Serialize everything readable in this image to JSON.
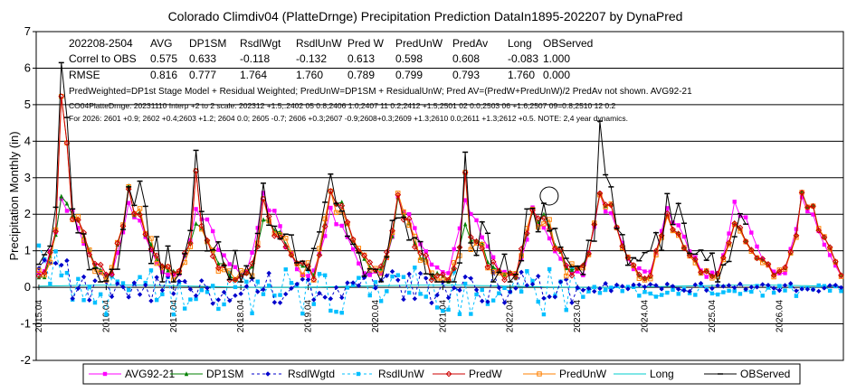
{
  "chart_data": {
    "type": "line",
    "title": "Colorado Climdiv04 (PlatteDrnge) Precipitation Prediction DataIn1895-202207 by DynaPred",
    "ylabel": "Precipitation Monthly (in)",
    "ylim": [
      -2,
      7
    ],
    "yticks": [
      "7",
      "6",
      "5",
      "4",
      "3",
      "2",
      "1",
      "0",
      "-1",
      "-2"
    ],
    "xrange": [
      2015.0,
      2026.99
    ],
    "xticks": [
      {
        "label": "2015.04",
        "value": 2015.04
      },
      {
        "label": "2016.04",
        "value": 2016.04
      },
      {
        "label": "2017.04",
        "value": 2017.04
      },
      {
        "label": "2018.04",
        "value": 2018.04
      },
      {
        "label": "2019.04",
        "value": 2019.04
      },
      {
        "label": "2020.04",
        "value": 2020.04
      },
      {
        "label": "2021.04",
        "value": 2021.04
      },
      {
        "label": "2022.04",
        "value": 2022.04
      },
      {
        "label": "2023.04",
        "value": 2023.04
      },
      {
        "label": "2024.04",
        "value": 2024.04
      },
      {
        "label": "2025.04",
        "value": 2025.04
      },
      {
        "label": "2026.04",
        "value": 2026.04
      }
    ],
    "stats_table": {
      "header": [
        "202208-2504",
        "AVG",
        "DP1SM",
        "RsdlWgt",
        "RsdlUnW",
        "Pred W",
        "PredUnW",
        "PredAv",
        "Long",
        "OBServed"
      ],
      "rows": [
        [
          "Correl to OBS",
          "0.575",
          "0.633",
          "-0.118",
          "-0.132",
          "0.613",
          "0.598",
          "0.608",
          "-0.083",
          "1.000"
        ],
        [
          "RMSE",
          "0.816",
          "0.777",
          "1.764",
          "1.760",
          "0.789",
          "0.799",
          "0.793",
          "1.760",
          "0.000"
        ]
      ]
    },
    "notes": [
      "PredWeighted=DP1st Stage Model + Residual Weighted; PredUnW=DP1SM + ResidualUnW; Pred AV=(PredW+PredUnW)/2 PredAv not shown. AVG92-21",
      "CO04PlatteDrnge. 20231110 Interp +2 to  2 scale: 202312 +1.5;.2402 05  0.8;2406  1.0;2407 11  0.2;2412 +1.5;2501 02 0.0;2503 06 +1.6;2507 09=0.8;2510 12  0.2",
      "For 2026: 2601 +0.9; 2602 +0.4;2603 +1.2; 2604  0.0; 2605 -0.7; 2606 +0.3;2607 -0.9;2608+0.3;2609 +1.3;2610 0.0;2611 +1.3;2612  +0.5.  NOTE: 2,4 year dynamics."
    ],
    "legend": [
      "AVG92-21",
      "DP1SM",
      "RsdlWgtd",
      "RsdlUnW",
      "PredW",
      "PredUnW",
      "Long",
      "OBServed"
    ],
    "colors": {
      "AVG92-21": "#ff00ff",
      "DP1SM": "#008000",
      "RsdlWgtd": "#0000cc",
      "RsdlUnW": "#00bfff",
      "PredW": "#cc0000",
      "PredUnW": "#ff8000",
      "Long": "#00cccc",
      "OBServed": "#000000"
    },
    "annotation": {
      "type": "circle",
      "x": 2022.62,
      "y": 2.5
    },
    "monthly_climatology": [
      0.38,
      0.42,
      0.95,
      1.55,
      2.45,
      2.05,
      1.95,
      1.55,
      1.15,
      0.85,
      0.55,
      0.45
    ],
    "observed_peaks": [
      {
        "x": 2015.38,
        "y": 6.15
      },
      {
        "x": 2015.45,
        "y": 4.65
      },
      {
        "x": 2016.38,
        "y": 2.75
      },
      {
        "x": 2017.38,
        "y": 3.75
      },
      {
        "x": 2018.38,
        "y": 2.85
      },
      {
        "x": 2019.38,
        "y": 3.1
      },
      {
        "x": 2020.38,
        "y": 1.9
      },
      {
        "x": 2021.38,
        "y": 3.7
      },
      {
        "x": 2022.55,
        "y": 2.3
      },
      {
        "x": 2022.8,
        "y": 1.1
      },
      {
        "x": 2023.38,
        "y": 4.55
      },
      {
        "x": 2023.55,
        "y": 2.75
      }
    ]
  }
}
